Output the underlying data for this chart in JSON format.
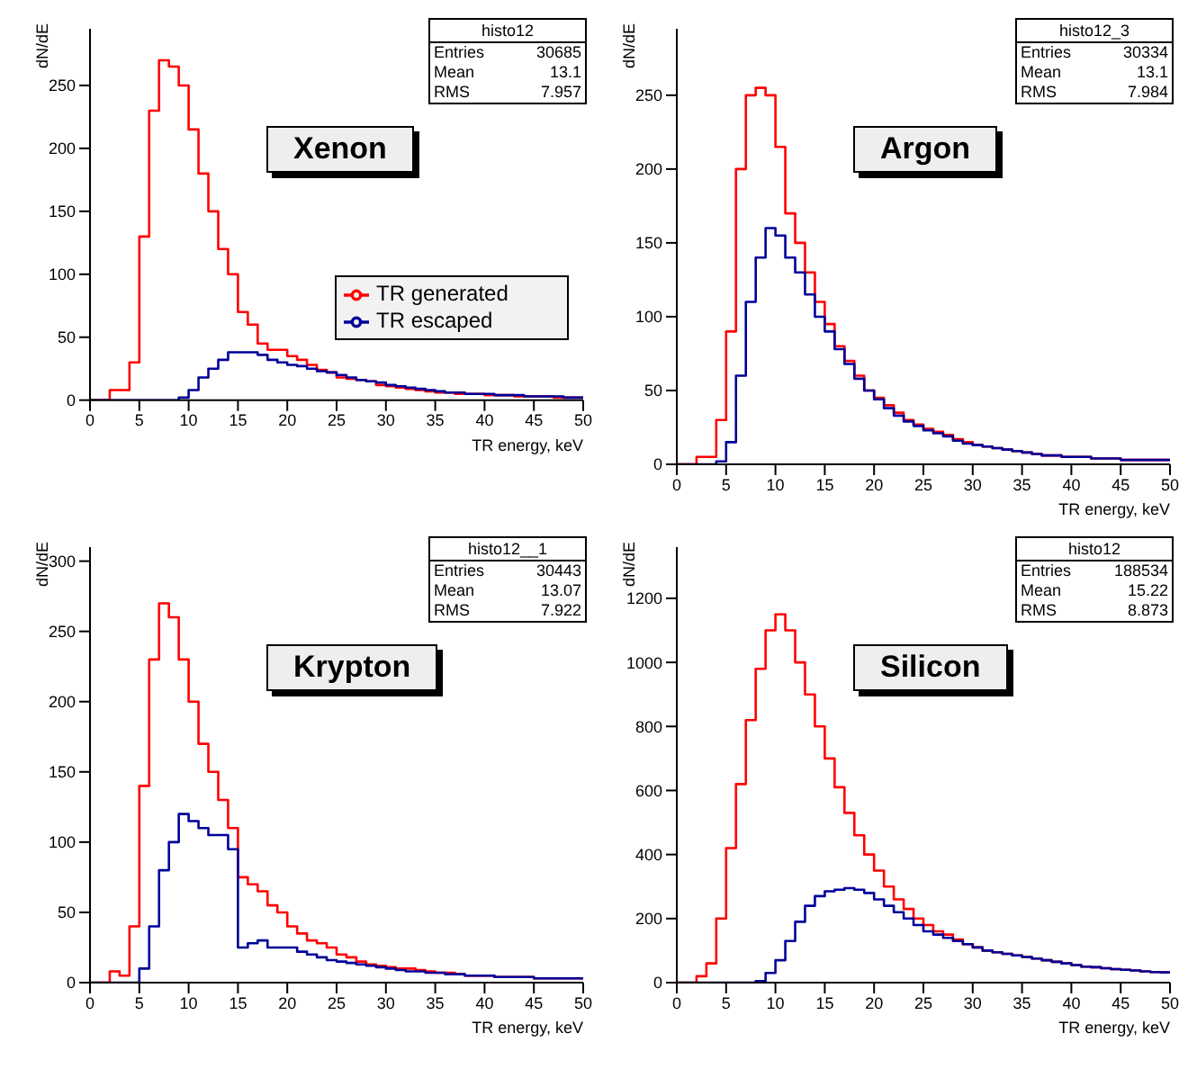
{
  "chart_data": [
    {
      "type": "histogram",
      "title": "Xenon",
      "xlabel": "TR energy, keV",
      "ylabel": "dN/dE",
      "bins": [
        0,
        1,
        2,
        3,
        4,
        5,
        6,
        7,
        8,
        9,
        10,
        11,
        12,
        13,
        14,
        15,
        16,
        17,
        18,
        19,
        20,
        21,
        22,
        23,
        24,
        25,
        26,
        27,
        28,
        29,
        30,
        31,
        32,
        33,
        34,
        35,
        36,
        37,
        38,
        39,
        40,
        41,
        42,
        43,
        44,
        45,
        46,
        47,
        48,
        49,
        50
      ],
      "xlim": [
        0,
        50
      ],
      "xticks": [
        0,
        5,
        10,
        15,
        20,
        25,
        30,
        35,
        40,
        45,
        50
      ],
      "ylim": [
        0,
        295
      ],
      "yticks": [
        0,
        50,
        100,
        150,
        200,
        250
      ],
      "legend": "right",
      "annotations": [
        "histo12",
        "Entries",
        "30685",
        "Mean",
        "13.1",
        "RMS",
        "7.957"
      ],
      "series": [
        {
          "name": "TR generated",
          "color": "#ff0000",
          "values": [
            0,
            0,
            8,
            8,
            30,
            130,
            230,
            270,
            265,
            250,
            215,
            180,
            150,
            120,
            100,
            70,
            60,
            45,
            40,
            40,
            35,
            32,
            28,
            24,
            22,
            18,
            17,
            16,
            15,
            12,
            11,
            10,
            9,
            8,
            7,
            6,
            6,
            5,
            5,
            5,
            4,
            4,
            4,
            3,
            3,
            3,
            3,
            2,
            2,
            2
          ]
        },
        {
          "name": "TR escaped",
          "color": "#000099",
          "values": [
            0,
            0,
            0,
            0,
            0,
            0,
            0,
            0,
            0,
            2,
            8,
            18,
            25,
            32,
            38,
            38,
            38,
            36,
            32,
            30,
            28,
            27,
            25,
            23,
            22,
            20,
            18,
            16,
            15,
            14,
            12,
            11,
            10,
            9,
            8,
            7,
            6,
            6,
            5,
            5,
            5,
            4,
            4,
            4,
            3,
            3,
            3,
            3,
            2,
            2
          ]
        }
      ]
    },
    {
      "type": "histogram",
      "title": "Argon",
      "xlabel": "TR energy, keV",
      "ylabel": "dN/dE",
      "bins": [
        0,
        1,
        2,
        3,
        4,
        5,
        6,
        7,
        8,
        9,
        10,
        11,
        12,
        13,
        14,
        15,
        16,
        17,
        18,
        19,
        20,
        21,
        22,
        23,
        24,
        25,
        26,
        27,
        28,
        29,
        30,
        31,
        32,
        33,
        34,
        35,
        36,
        37,
        38,
        39,
        40,
        41,
        42,
        43,
        44,
        45,
        46,
        47,
        48,
        49,
        50
      ],
      "xlim": [
        0,
        50
      ],
      "xticks": [
        0,
        5,
        10,
        15,
        20,
        25,
        30,
        35,
        40,
        45,
        50
      ],
      "ylim": [
        0,
        295
      ],
      "yticks": [
        0,
        50,
        100,
        150,
        200,
        250
      ],
      "annotations": [
        "histo12_3",
        "Entries",
        "30334",
        "Mean",
        "13.1",
        "RMS",
        "7.984"
      ],
      "series": [
        {
          "color": "#ff0000",
          "values": [
            0,
            0,
            5,
            5,
            30,
            90,
            200,
            250,
            255,
            250,
            215,
            170,
            150,
            130,
            110,
            95,
            80,
            70,
            60,
            50,
            45,
            40,
            35,
            30,
            27,
            24,
            22,
            20,
            17,
            15,
            13,
            12,
            11,
            10,
            9,
            8,
            7,
            6,
            6,
            5,
            5,
            5,
            4,
            4,
            4,
            3,
            3,
            3,
            3,
            3
          ]
        },
        {
          "color": "#000099",
          "values": [
            0,
            0,
            0,
            0,
            2,
            15,
            60,
            110,
            140,
            160,
            155,
            140,
            130,
            115,
            100,
            90,
            78,
            68,
            58,
            50,
            44,
            38,
            33,
            29,
            26,
            23,
            21,
            19,
            16,
            14,
            13,
            12,
            11,
            10,
            9,
            8,
            7,
            6,
            6,
            5,
            5,
            5,
            4,
            4,
            4,
            3,
            3,
            3,
            3,
            3
          ]
        }
      ]
    },
    {
      "type": "histogram",
      "title": "Krypton",
      "xlabel": "TR energy, keV",
      "ylabel": "dN/dE",
      "bins": [
        0,
        1,
        2,
        3,
        4,
        5,
        6,
        7,
        8,
        9,
        10,
        11,
        12,
        13,
        14,
        15,
        16,
        17,
        18,
        19,
        20,
        21,
        22,
        23,
        24,
        25,
        26,
        27,
        28,
        29,
        30,
        31,
        32,
        33,
        34,
        35,
        36,
        37,
        38,
        39,
        40,
        41,
        42,
        43,
        44,
        45,
        46,
        47,
        48,
        49,
        50
      ],
      "xlim": [
        0,
        50
      ],
      "xticks": [
        0,
        5,
        10,
        15,
        20,
        25,
        30,
        35,
        40,
        45,
        50
      ],
      "ylim": [
        0,
        310
      ],
      "yticks": [
        0,
        50,
        100,
        150,
        200,
        250,
        300
      ],
      "annotations": [
        "histo12__1",
        "Entries",
        "30443",
        "Mean",
        "13.07",
        "RMS",
        "7.922"
      ],
      "series": [
        {
          "color": "#ff0000",
          "values": [
            0,
            0,
            8,
            5,
            40,
            140,
            230,
            270,
            260,
            230,
            200,
            170,
            150,
            130,
            110,
            75,
            70,
            65,
            55,
            50,
            40,
            35,
            30,
            28,
            25,
            20,
            18,
            15,
            13,
            12,
            11,
            10,
            10,
            9,
            8,
            7,
            7,
            6,
            5,
            5,
            5,
            4,
            4,
            4,
            4,
            3,
            3,
            3,
            3,
            3
          ]
        },
        {
          "color": "#000099",
          "values": [
            0,
            0,
            0,
            0,
            0,
            10,
            40,
            80,
            100,
            120,
            115,
            110,
            105,
            105,
            95,
            25,
            28,
            30,
            25,
            25,
            25,
            22,
            20,
            18,
            16,
            15,
            14,
            13,
            12,
            11,
            10,
            9,
            8,
            8,
            7,
            7,
            6,
            6,
            5,
            5,
            5,
            4,
            4,
            4,
            4,
            3,
            3,
            3,
            3,
            3
          ]
        }
      ]
    },
    {
      "type": "histogram",
      "title": "Silicon",
      "xlabel": "TR energy, keV",
      "ylabel": "dN/dE",
      "bins": [
        0,
        1,
        2,
        3,
        4,
        5,
        6,
        7,
        8,
        9,
        10,
        11,
        12,
        13,
        14,
        15,
        16,
        17,
        18,
        19,
        20,
        21,
        22,
        23,
        24,
        25,
        26,
        27,
        28,
        29,
        30,
        31,
        32,
        33,
        34,
        35,
        36,
        37,
        38,
        39,
        40,
        41,
        42,
        43,
        44,
        45,
        46,
        47,
        48,
        49,
        50
      ],
      "xlim": [
        0,
        50
      ],
      "xticks": [
        0,
        5,
        10,
        15,
        20,
        25,
        30,
        35,
        40,
        45,
        50
      ],
      "ylim": [
        0,
        1360
      ],
      "yticks": [
        0,
        200,
        400,
        600,
        800,
        1000,
        1200
      ],
      "annotations": [
        "histo12",
        "Entries",
        "188534",
        "Mean",
        "15.22",
        "RMS",
        "8.873"
      ],
      "series": [
        {
          "color": "#ff0000",
          "values": [
            0,
            0,
            20,
            60,
            200,
            420,
            620,
            820,
            980,
            1100,
            1150,
            1100,
            1000,
            900,
            800,
            700,
            610,
            530,
            460,
            400,
            350,
            300,
            260,
            230,
            200,
            180,
            160,
            150,
            135,
            120,
            110,
            100,
            95,
            90,
            85,
            80,
            75,
            70,
            65,
            60,
            55,
            50,
            48,
            45,
            42,
            40,
            38,
            35,
            33,
            32
          ]
        },
        {
          "color": "#000099",
          "values": [
            0,
            0,
            0,
            0,
            0,
            0,
            0,
            0,
            5,
            30,
            70,
            130,
            190,
            240,
            270,
            285,
            290,
            295,
            290,
            280,
            260,
            240,
            220,
            200,
            180,
            160,
            150,
            140,
            130,
            120,
            110,
            100,
            95,
            90,
            85,
            80,
            75,
            70,
            65,
            60,
            55,
            50,
            48,
            45,
            42,
            40,
            38,
            35,
            33,
            32
          ]
        }
      ]
    }
  ]
}
